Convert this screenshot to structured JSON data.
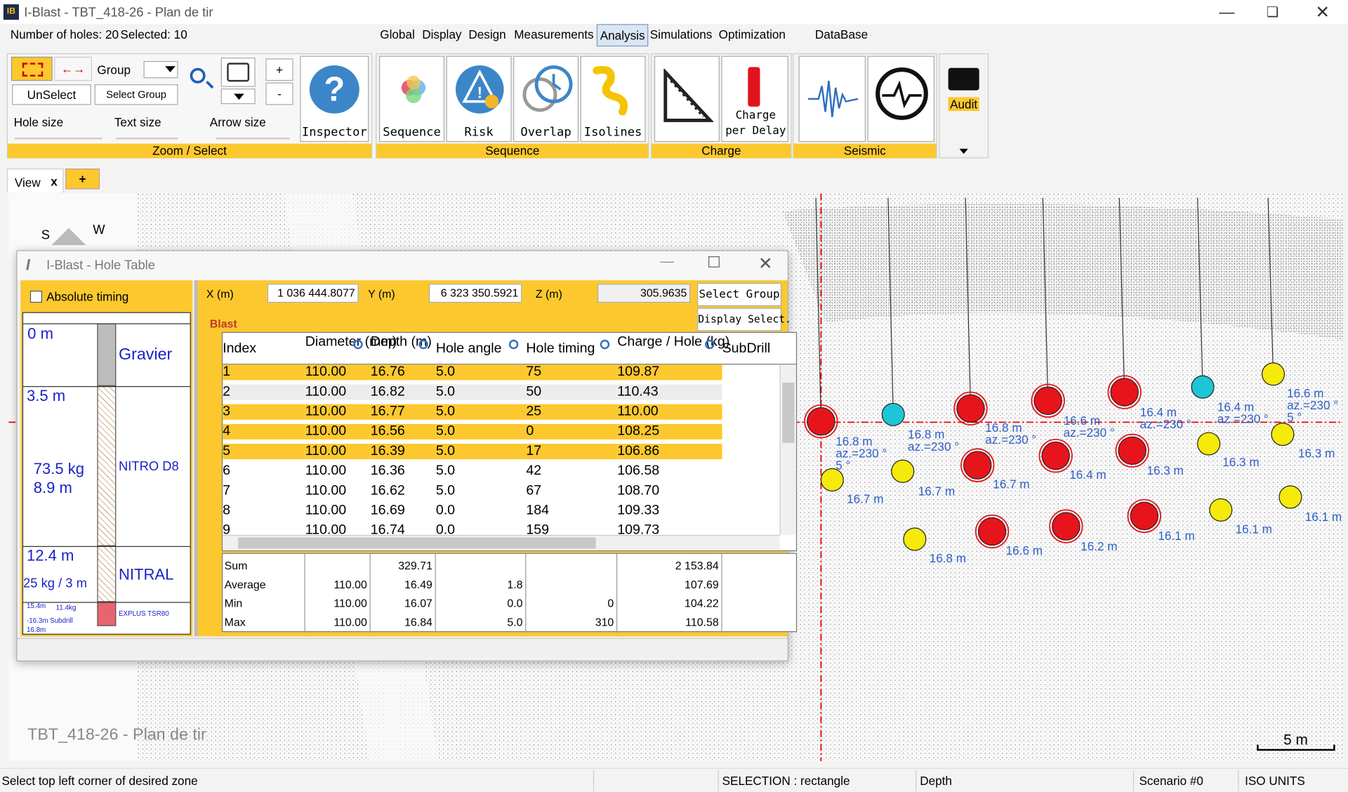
{
  "window": {
    "title": "I-Blast - TBT_418-26 - Plan de tir"
  },
  "info": {
    "holes": "Number of holes: 20",
    "selected": "Selected: 10"
  },
  "menu": [
    "Global",
    "Display",
    "Design",
    "Measurements",
    "Analysis",
    "Simulations",
    "Optimization",
    "DataBase"
  ],
  "ribbon": {
    "zoom_select": {
      "label": "Zoom / Select",
      "unselect": "UnSelect",
      "group": "Group",
      "select_group": "Select Group",
      "hole_size": "Hole size",
      "text_size": "Text size",
      "arrow_size": "Arrow size",
      "plus": "+",
      "minus": "-",
      "inspector": "Inspector"
    },
    "sequence": {
      "label": "Sequence",
      "buttons": [
        "Sequence",
        "Risk",
        "Overlap",
        "Isolines"
      ]
    },
    "charge": {
      "label": "Charge",
      "buttons": [
        "Charge per Delay"
      ]
    },
    "seismic": {
      "label": "Seismic"
    },
    "audit": "Audit"
  },
  "tabs": {
    "view": "View",
    "close": "x",
    "add": "+"
  },
  "canvas": {
    "compass": [
      "S",
      "W"
    ],
    "hole_labels": [
      "16.8 m",
      "az.=230 °",
      "5 °",
      "16.8 m",
      "az.=230 °",
      "16.8 m",
      "az.=230 °",
      "16.6 m",
      "az.=230 °",
      "16.4 m",
      "az.=230 °",
      "16.4 m",
      "az.=230 °",
      "16.6 m",
      "az.=230 °",
      "5 °",
      "16.7 m",
      "16.7 m",
      "16.7 m",
      "16.4 m",
      "16.3 m",
      "16.3 m",
      "16.3 m",
      "16.8 m",
      "16.6 m",
      "16.2 m",
      "16.1 m",
      "16.1 m",
      "16.1 m"
    ],
    "plan_name": "TBT_418-26 - Plan de tir",
    "scale": "5 m"
  },
  "hole_table": {
    "title": "I-Blast - Hole Table",
    "absolute_timing": "Absolute timing",
    "strata": {
      "top_depth": "0 m",
      "layer1": "Gravier",
      "depth2": "3.5 m",
      "charge": "73.5 kg",
      "length": "8.9 m",
      "layer2": "NITRO D8",
      "depth3": "12.4 m",
      "density": "25 kg / 3 m",
      "layer3": "NITRAL",
      "depth4": "15.4m",
      "charge4": "11.4kg",
      "subdrill": "-16.3m Subdrill",
      "bottom": "16.8m",
      "layer4": "EXPLUS TSR80"
    },
    "coords": {
      "x_label": "X (m)",
      "x": "1 036 444.8077",
      "y_label": "Y (m)",
      "y": "6 323 350.5921",
      "z_label": "Z (m)",
      "z": "305.9635"
    },
    "select_group": "Select Group",
    "display_select": "Display Select.",
    "blast": "Blast",
    "columns": [
      "Index",
      "Diameter (mm)",
      "Depth (m)",
      "Hole angle",
      "Hole timing",
      "Charge / Hole (kg)",
      "SubDrill"
    ],
    "rows": [
      {
        "cells": [
          "1",
          "110.00",
          "16.76",
          "5.0",
          "75",
          "109.87"
        ],
        "selected": true
      },
      {
        "cells": [
          "2",
          "110.00",
          "16.82",
          "5.0",
          "50",
          "110.43"
        ],
        "selected": false
      },
      {
        "cells": [
          "3",
          "110.00",
          "16.77",
          "5.0",
          "25",
          "110.00"
        ],
        "selected": true
      },
      {
        "cells": [
          "4",
          "110.00",
          "16.56",
          "5.0",
          "0",
          "108.25"
        ],
        "selected": true
      },
      {
        "cells": [
          "5",
          "110.00",
          "16.39",
          "5.0",
          "17",
          "106.86"
        ],
        "selected": true
      },
      {
        "cells": [
          "6",
          "110.00",
          "16.36",
          "5.0",
          "42",
          "106.58"
        ],
        "selected": false
      },
      {
        "cells": [
          "7",
          "110.00",
          "16.62",
          "5.0",
          "67",
          "108.70"
        ],
        "selected": false
      },
      {
        "cells": [
          "8",
          "110.00",
          "16.69",
          "0.0",
          "184",
          "109.33"
        ],
        "selected": false
      },
      {
        "cells": [
          "9",
          "110.00",
          "16.74",
          "0.0",
          "159",
          "109.73"
        ],
        "selected": false
      }
    ],
    "summary": [
      {
        "label": "Sum",
        "depth": "329.71",
        "charge": "2 153.84"
      },
      {
        "label": "Average",
        "diameter": "110.00",
        "depth": "16.49",
        "angle": "1.8",
        "charge": "107.69"
      },
      {
        "label": "Min",
        "diameter": "110.00",
        "depth": "16.07",
        "angle": "0.0",
        "timing": "0",
        "charge": "104.22"
      },
      {
        "label": "Max",
        "diameter": "110.00",
        "depth": "16.84",
        "angle": "5.0",
        "timing": "310",
        "charge": "110.58"
      }
    ]
  },
  "status_bar": [
    "Select top left corner of desired zone",
    "SELECTION : rectangle",
    "Depth",
    "Scenario #0",
    "ISO UNITS"
  ]
}
